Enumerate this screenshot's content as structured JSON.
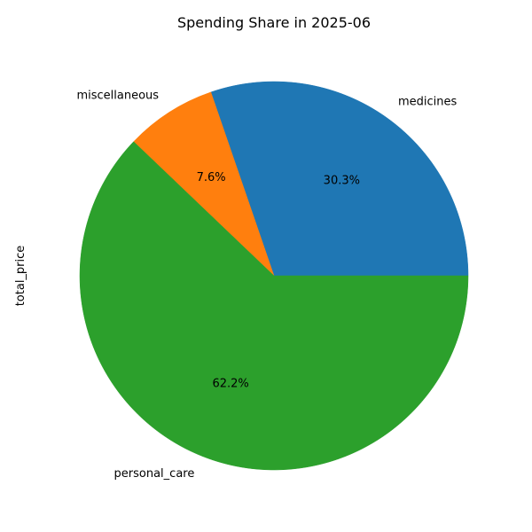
{
  "chart_data": {
    "type": "pie",
    "title": "Spending Share in 2025-06",
    "ylabel": "total_price",
    "categories": [
      "medicines",
      "miscellaneous",
      "personal_care"
    ],
    "values": [
      30.3,
      7.6,
      62.2
    ],
    "percent_labels": [
      "30.3%",
      "7.6%",
      "62.2%"
    ],
    "colors": [
      "#1f77b4",
      "#ff7f0e",
      "#2ca02c"
    ],
    "start_angle_deg": 0,
    "direction": "counterclockwise",
    "legend": "none"
  }
}
